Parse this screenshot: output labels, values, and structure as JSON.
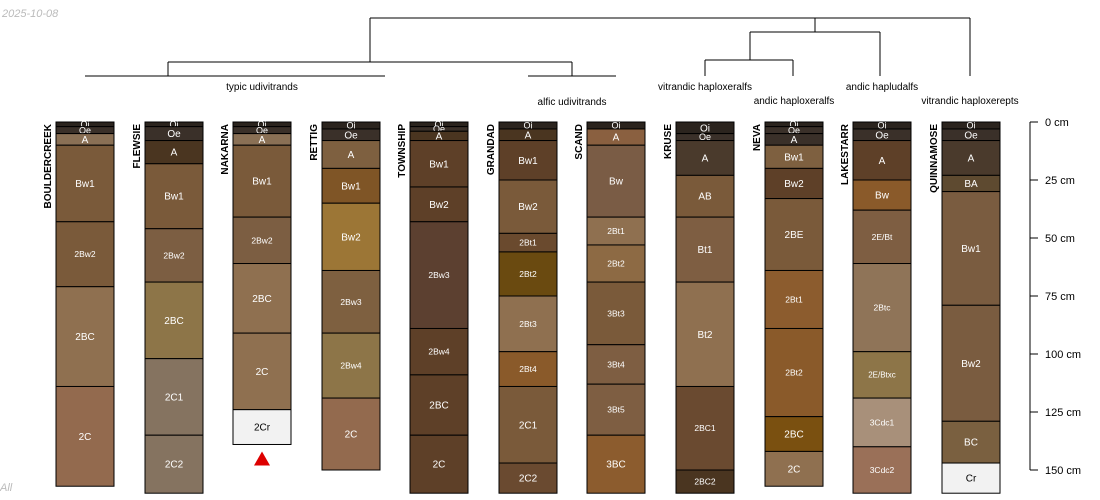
{
  "date_stamp": "2025-10-08",
  "footer_stamp": "All",
  "depth_axis": {
    "unit": "cm",
    "ticks": [
      {
        "depth": 0,
        "label": "0 cm"
      },
      {
        "depth": 25,
        "label": "25 cm"
      },
      {
        "depth": 50,
        "label": "50 cm"
      },
      {
        "depth": 75,
        "label": "75 cm"
      },
      {
        "depth": 100,
        "label": "100 cm"
      },
      {
        "depth": 125,
        "label": "125 cm"
      },
      {
        "depth": 150,
        "label": "150 cm"
      }
    ]
  },
  "groups": [
    {
      "label": "typic udivitrands"
    },
    {
      "label": "alfic udivitrands"
    },
    {
      "label": "vitrandic haploxeralfs"
    },
    {
      "label": "andic haploxeralfs"
    },
    {
      "label": "andic hapludalfs"
    },
    {
      "label": "vitrandic haploxerepts"
    }
  ],
  "profiles": [
    {
      "name": "BOULDERCREEK",
      "horizons": [
        {
          "name": "Oi",
          "top": 0,
          "bottom": 2,
          "color": "#2b241e"
        },
        {
          "name": "Oe",
          "top": 2,
          "bottom": 5,
          "color": "#3a3029"
        },
        {
          "name": "A",
          "top": 5,
          "bottom": 10,
          "color": "#8a7055"
        },
        {
          "name": "Bw1",
          "top": 10,
          "bottom": 43,
          "color": "#7a5a3a"
        },
        {
          "name": "2Bw2",
          "top": 43,
          "bottom": 71,
          "color": "#7a5a3a"
        },
        {
          "name": "2BC",
          "top": 71,
          "bottom": 114,
          "color": "#8f7050"
        },
        {
          "name": "2C",
          "top": 114,
          "bottom": 157,
          "color": "#936a4e"
        }
      ]
    },
    {
      "name": "FLEWSIE",
      "horizons": [
        {
          "name": "Oi",
          "top": 0,
          "bottom": 2,
          "color": "#2b241e"
        },
        {
          "name": "Oe",
          "top": 2,
          "bottom": 8,
          "color": "#3a3029"
        },
        {
          "name": "A",
          "top": 8,
          "bottom": 18,
          "color": "#4a3520"
        },
        {
          "name": "Bw1",
          "top": 18,
          "bottom": 46,
          "color": "#7a5a3a"
        },
        {
          "name": "2Bw2",
          "top": 46,
          "bottom": 69,
          "color": "#7c5e42"
        },
        {
          "name": "2BC",
          "top": 69,
          "bottom": 102,
          "color": "#8d7548"
        },
        {
          "name": "2C1",
          "top": 102,
          "bottom": 135,
          "color": "#857360"
        },
        {
          "name": "2C2",
          "top": 135,
          "bottom": 160,
          "color": "#857360"
        }
      ]
    },
    {
      "name": "NAKARNA",
      "horizons": [
        {
          "name": "Oi",
          "top": 0,
          "bottom": 2,
          "color": "#2b241e"
        },
        {
          "name": "Oe",
          "top": 2,
          "bottom": 5,
          "color": "#3a3029"
        },
        {
          "name": "A",
          "top": 5,
          "bottom": 10,
          "color": "#8a7055"
        },
        {
          "name": "Bw1",
          "top": 10,
          "bottom": 41,
          "color": "#7a5a3a"
        },
        {
          "name": "2Bw2",
          "top": 41,
          "bottom": 61,
          "color": "#7c5e42"
        },
        {
          "name": "2BC",
          "top": 61,
          "bottom": 91,
          "color": "#8f7050"
        },
        {
          "name": "2C",
          "top": 91,
          "bottom": 124,
          "color": "#8f7050"
        },
        {
          "name": "2Cr",
          "top": 124,
          "bottom": 139,
          "color": "#f2f2f2"
        }
      ]
    },
    {
      "name": "RETTIG",
      "horizons": [
        {
          "name": "Oi",
          "top": 0,
          "bottom": 3,
          "color": "#2b241e"
        },
        {
          "name": "Oe",
          "top": 3,
          "bottom": 8,
          "color": "#3a3029"
        },
        {
          "name": "A",
          "top": 8,
          "bottom": 20,
          "color": "#7e6040"
        },
        {
          "name": "Bw1",
          "top": 20,
          "bottom": 35,
          "color": "#7f5526"
        },
        {
          "name": "Bw2",
          "top": 35,
          "bottom": 64,
          "color": "#9c7636"
        },
        {
          "name": "2Bw3",
          "top": 64,
          "bottom": 91,
          "color": "#7e6040"
        },
        {
          "name": "2Bw4",
          "top": 91,
          "bottom": 119,
          "color": "#8d7548"
        },
        {
          "name": "2C",
          "top": 119,
          "bottom": 150,
          "color": "#936a4e"
        }
      ]
    },
    {
      "name": "TOWNSHIP",
      "horizons": [
        {
          "name": "Oi",
          "top": 0,
          "bottom": 2,
          "color": "#2b241e"
        },
        {
          "name": "Oe",
          "top": 2,
          "bottom": 4,
          "color": "#3a3029"
        },
        {
          "name": "A",
          "top": 4,
          "bottom": 8,
          "color": "#4a3520"
        },
        {
          "name": "Bw1",
          "top": 8,
          "bottom": 28,
          "color": "#5e4028"
        },
        {
          "name": "Bw2",
          "top": 28,
          "bottom": 43,
          "color": "#5e4028"
        },
        {
          "name": "2Bw3",
          "top": 43,
          "bottom": 89,
          "color": "#5c4030"
        },
        {
          "name": "2Bw4",
          "top": 89,
          "bottom": 109,
          "color": "#5e4028"
        },
        {
          "name": "2BC",
          "top": 109,
          "bottom": 135,
          "color": "#5e4028"
        },
        {
          "name": "2C",
          "top": 135,
          "bottom": 160,
          "color": "#5e4028"
        }
      ]
    },
    {
      "name": "GRANDAD",
      "horizons": [
        {
          "name": "Oi",
          "top": 0,
          "bottom": 3,
          "color": "#2b241e"
        },
        {
          "name": "A",
          "top": 3,
          "bottom": 8,
          "color": "#4a3520"
        },
        {
          "name": "Bw1",
          "top": 8,
          "bottom": 25,
          "color": "#5e4028"
        },
        {
          "name": "Bw2",
          "top": 25,
          "bottom": 48,
          "color": "#7a5a3a"
        },
        {
          "name": "2Bt1",
          "top": 48,
          "bottom": 56,
          "color": "#6a4a2e"
        },
        {
          "name": "2Bt2",
          "top": 56,
          "bottom": 75,
          "color": "#6a4a10"
        },
        {
          "name": "2Bt3",
          "top": 75,
          "bottom": 99,
          "color": "#8f7050"
        },
        {
          "name": "2Bt4",
          "top": 99,
          "bottom": 114,
          "color": "#8a5a2a"
        },
        {
          "name": "2C1",
          "top": 114,
          "bottom": 147,
          "color": "#7a5a3a"
        },
        {
          "name": "2C2",
          "top": 147,
          "bottom": 160,
          "color": "#6a4a30"
        }
      ]
    },
    {
      "name": "SCAND",
      "horizons": [
        {
          "name": "Oi",
          "top": 0,
          "bottom": 3,
          "color": "#2b241e"
        },
        {
          "name": "A",
          "top": 3,
          "bottom": 10,
          "color": "#8a6040"
        },
        {
          "name": "Bw",
          "top": 10,
          "bottom": 41,
          "color": "#7a5c45"
        },
        {
          "name": "2Bt1",
          "top": 41,
          "bottom": 53,
          "color": "#8f7050"
        },
        {
          "name": "2Bt2",
          "top": 53,
          "bottom": 69,
          "color": "#8d6a44"
        },
        {
          "name": "3Bt3",
          "top": 69,
          "bottom": 96,
          "color": "#7a5a3a"
        },
        {
          "name": "3Bt4",
          "top": 96,
          "bottom": 113,
          "color": "#7e5e42"
        },
        {
          "name": "3Bt5",
          "top": 113,
          "bottom": 135,
          "color": "#7e5e42"
        },
        {
          "name": "3BC",
          "top": 135,
          "bottom": 160,
          "color": "#8c5c2e"
        }
      ]
    },
    {
      "name": "KRUSE",
      "horizons": [
        {
          "name": "Oi",
          "top": 0,
          "bottom": 5,
          "color": "#2b241e"
        },
        {
          "name": "Oe",
          "top": 5,
          "bottom": 8,
          "color": "#3a3029"
        },
        {
          "name": "A",
          "top": 8,
          "bottom": 23,
          "color": "#4a3a2c"
        },
        {
          "name": "AB",
          "top": 23,
          "bottom": 41,
          "color": "#7a5a3a"
        },
        {
          "name": "Bt1",
          "top": 41,
          "bottom": 69,
          "color": "#7e5e42"
        },
        {
          "name": "Bt2",
          "top": 69,
          "bottom": 114,
          "color": "#8f7050"
        },
        {
          "name": "2BC1",
          "top": 114,
          "bottom": 150,
          "color": "#6a4a30"
        },
        {
          "name": "2BC2",
          "top": 150,
          "bottom": 160,
          "color": "#4a3520"
        }
      ]
    },
    {
      "name": "NEVA",
      "horizons": [
        {
          "name": "Oi",
          "top": 0,
          "bottom": 2,
          "color": "#2b241e"
        },
        {
          "name": "Oe",
          "top": 2,
          "bottom": 5,
          "color": "#3a3029"
        },
        {
          "name": "A",
          "top": 5,
          "bottom": 10,
          "color": "#3a3029"
        },
        {
          "name": "Bw1",
          "top": 10,
          "bottom": 20,
          "color": "#7e6040"
        },
        {
          "name": "Bw2",
          "top": 20,
          "bottom": 33,
          "color": "#5e4028"
        },
        {
          "name": "2BE",
          "top": 33,
          "bottom": 64,
          "color": "#7a5a3a"
        },
        {
          "name": "2Bt1",
          "top": 64,
          "bottom": 89,
          "color": "#8c5c2e"
        },
        {
          "name": "2Bt2",
          "top": 89,
          "bottom": 127,
          "color": "#8a5a2a"
        },
        {
          "name": "2BC",
          "top": 127,
          "bottom": 142,
          "color": "#7a5010"
        },
        {
          "name": "2C",
          "top": 142,
          "bottom": 157,
          "color": "#8f7050"
        }
      ]
    },
    {
      "name": "LAKESTARR",
      "horizons": [
        {
          "name": "Oi",
          "top": 0,
          "bottom": 3,
          "color": "#2b241e"
        },
        {
          "name": "Oe",
          "top": 3,
          "bottom": 8,
          "color": "#3a3029"
        },
        {
          "name": "A",
          "top": 8,
          "bottom": 25,
          "color": "#5e4028"
        },
        {
          "name": "Bw",
          "top": 25,
          "bottom": 38,
          "color": "#8a5a2a"
        },
        {
          "name": "2E/Bt",
          "top": 38,
          "bottom": 61,
          "color": "#7e5e42"
        },
        {
          "name": "2Btc",
          "top": 61,
          "bottom": 99,
          "color": "#8f7458"
        },
        {
          "name": "2E/Btxc",
          "top": 99,
          "bottom": 119,
          "color": "#8d7548"
        },
        {
          "name": "3Cdc1",
          "top": 119,
          "bottom": 140,
          "color": "#a8907a"
        },
        {
          "name": "3Cdc2",
          "top": 140,
          "bottom": 160,
          "color": "#9a7058"
        }
      ]
    },
    {
      "name": "QUINNAMOSE",
      "horizons": [
        {
          "name": "Oi",
          "top": 0,
          "bottom": 3,
          "color": "#2b241e"
        },
        {
          "name": "Oe",
          "top": 3,
          "bottom": 8,
          "color": "#3a3029"
        },
        {
          "name": "A",
          "top": 8,
          "bottom": 23,
          "color": "#4a3a2c"
        },
        {
          "name": "BA",
          "top": 23,
          "bottom": 30,
          "color": "#5e4a30"
        },
        {
          "name": "Bw1",
          "top": 30,
          "bottom": 79,
          "color": "#7a5c40"
        },
        {
          "name": "Bw2",
          "top": 79,
          "bottom": 129,
          "color": "#7a5c40"
        },
        {
          "name": "BC",
          "top": 129,
          "bottom": 147,
          "color": "#7a6040"
        },
        {
          "name": "Cr",
          "top": 147,
          "bottom": 160,
          "color": "#f2f2f2"
        }
      ]
    }
  ],
  "bedrock_marker_profile": "NAKARNA",
  "colors": {
    "line": "#000000",
    "marker": "#dd0000"
  }
}
